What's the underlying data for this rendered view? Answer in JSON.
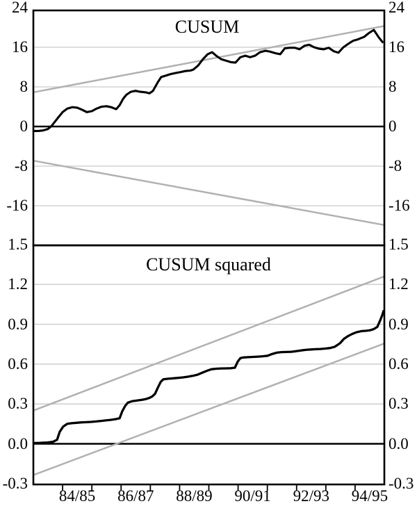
{
  "figure": {
    "kind": "dual-panel stability test chart",
    "top_title": "CUSUM",
    "bottom_title": "CUSUM squared"
  },
  "chart_data": [
    {
      "type": "line",
      "title": "CUSUM",
      "ylim": [
        -24,
        24
      ],
      "yticks": [
        {
          "v": 24,
          "label": "24"
        },
        {
          "v": 16,
          "label": "16"
        },
        {
          "v": 8,
          "label": "8"
        },
        {
          "v": 0,
          "label": "0"
        },
        {
          "v": -8,
          "label": "-8"
        },
        {
          "v": -16,
          "label": "-16"
        }
      ],
      "gridlines": [
        16,
        8,
        -8,
        -16
      ],
      "zero_line": 0,
      "grid_color": "#c9c9c9",
      "bound_color": "#b1b1b1",
      "line_color": "#000000",
      "series": [
        {
          "name": "cusum",
          "color": "#000000",
          "width": 3.1,
          "points": [
            [
              0.0,
              -0.9
            ],
            [
              0.17,
              -0.9
            ],
            [
              0.33,
              -0.8
            ],
            [
              0.5,
              -0.5
            ],
            [
              0.62,
              0.1
            ],
            [
              0.74,
              1.0
            ],
            [
              0.86,
              1.9
            ],
            [
              1.0,
              2.9
            ],
            [
              1.16,
              3.6
            ],
            [
              1.33,
              3.9
            ],
            [
              1.5,
              3.8
            ],
            [
              1.66,
              3.4
            ],
            [
              1.83,
              2.9
            ],
            [
              2.0,
              3.1
            ],
            [
              2.16,
              3.6
            ],
            [
              2.33,
              4.0
            ],
            [
              2.5,
              4.1
            ],
            [
              2.66,
              3.9
            ],
            [
              2.83,
              3.5
            ],
            [
              2.95,
              4.3
            ],
            [
              3.07,
              5.6
            ],
            [
              3.18,
              6.4
            ],
            [
              3.33,
              7.0
            ],
            [
              3.49,
              7.2
            ],
            [
              3.66,
              7.0
            ],
            [
              3.83,
              6.9
            ],
            [
              3.97,
              6.7
            ],
            [
              4.09,
              7.2
            ],
            [
              4.25,
              8.9
            ],
            [
              4.37,
              10.0
            ],
            [
              4.54,
              10.3
            ],
            [
              4.7,
              10.6
            ],
            [
              4.87,
              10.8
            ],
            [
              5.04,
              11.0
            ],
            [
              5.2,
              11.2
            ],
            [
              5.37,
              11.3
            ],
            [
              5.47,
              11.5
            ],
            [
              5.63,
              12.3
            ],
            [
              5.8,
              13.6
            ],
            [
              5.96,
              14.6
            ],
            [
              6.11,
              15.0
            ],
            [
              6.25,
              14.3
            ],
            [
              6.42,
              13.6
            ],
            [
              6.58,
              13.3
            ],
            [
              6.75,
              13.0
            ],
            [
              6.91,
              12.9
            ],
            [
              7.08,
              14.0
            ],
            [
              7.25,
              14.3
            ],
            [
              7.41,
              14.0
            ],
            [
              7.58,
              14.3
            ],
            [
              7.75,
              15.0
            ],
            [
              7.94,
              15.3
            ],
            [
              8.1,
              15.1
            ],
            [
              8.27,
              14.8
            ],
            [
              8.44,
              14.6
            ],
            [
              8.6,
              15.8
            ],
            [
              8.77,
              15.9
            ],
            [
              8.94,
              15.9
            ],
            [
              9.1,
              15.6
            ],
            [
              9.27,
              16.3
            ],
            [
              9.43,
              16.5
            ],
            [
              9.6,
              16.0
            ],
            [
              9.77,
              15.7
            ],
            [
              9.93,
              15.6
            ],
            [
              10.1,
              15.9
            ],
            [
              10.27,
              15.2
            ],
            [
              10.43,
              14.9
            ],
            [
              10.6,
              16.0
            ],
            [
              10.77,
              16.7
            ],
            [
              10.93,
              17.3
            ],
            [
              11.1,
              17.6
            ],
            [
              11.31,
              18.1
            ],
            [
              11.48,
              18.9
            ],
            [
              11.64,
              19.5
            ],
            [
              11.81,
              18.0
            ],
            [
              11.96,
              16.9
            ]
          ]
        },
        {
          "name": "upper-5pct-bound",
          "color": "#b1b1b1",
          "width": 2.5,
          "points": [
            [
              0,
              6.9
            ],
            [
              12,
              20.3
            ]
          ]
        },
        {
          "name": "lower-5pct-bound",
          "color": "#b1b1b1",
          "width": 2.5,
          "points": [
            [
              0,
              -6.9
            ],
            [
              12,
              -19.9
            ]
          ]
        }
      ]
    },
    {
      "type": "line",
      "title": "CUSUM squared",
      "ylim": [
        -0.3,
        1.5
      ],
      "yticks": [
        {
          "v": 1.5,
          "label": "1.5"
        },
        {
          "v": 1.2,
          "label": "1.2"
        },
        {
          "v": 0.9,
          "label": "0.9"
        },
        {
          "v": 0.6,
          "label": "0.6"
        },
        {
          "v": 0.3,
          "label": "0.3"
        },
        {
          "v": 0.0,
          "label": "0.0"
        },
        {
          "v": -0.3,
          "label": "-0.3"
        }
      ],
      "gridlines": [
        1.2,
        0.9,
        0.6,
        0.3
      ],
      "zero_line": 0,
      "grid_color": "#c9c9c9",
      "bound_color": "#b1b1b1",
      "line_color": "#000000",
      "series": [
        {
          "name": "cusum-squared",
          "color": "#000000",
          "width": 3.3,
          "points": [
            [
              0.0,
              0.005
            ],
            [
              0.24,
              0.007
            ],
            [
              0.48,
              0.01
            ],
            [
              0.67,
              0.015
            ],
            [
              0.81,
              0.03
            ],
            [
              0.9,
              0.09
            ],
            [
              1.02,
              0.13
            ],
            [
              1.16,
              0.15
            ],
            [
              1.31,
              0.155
            ],
            [
              1.47,
              0.158
            ],
            [
              1.64,
              0.161
            ],
            [
              1.81,
              0.163
            ],
            [
              1.97,
              0.165
            ],
            [
              2.14,
              0.168
            ],
            [
              2.31,
              0.172
            ],
            [
              2.47,
              0.176
            ],
            [
              2.64,
              0.18
            ],
            [
              2.8,
              0.185
            ],
            [
              2.95,
              0.192
            ],
            [
              3.04,
              0.245
            ],
            [
              3.14,
              0.285
            ],
            [
              3.23,
              0.31
            ],
            [
              3.37,
              0.32
            ],
            [
              3.54,
              0.326
            ],
            [
              3.71,
              0.331
            ],
            [
              3.85,
              0.337
            ],
            [
              3.97,
              0.346
            ],
            [
              4.06,
              0.356
            ],
            [
              4.16,
              0.376
            ],
            [
              4.25,
              0.42
            ],
            [
              4.35,
              0.465
            ],
            [
              4.44,
              0.485
            ],
            [
              4.61,
              0.49
            ],
            [
              4.78,
              0.493
            ],
            [
              4.94,
              0.496
            ],
            [
              5.11,
              0.5
            ],
            [
              5.28,
              0.505
            ],
            [
              5.44,
              0.511
            ],
            [
              5.61,
              0.52
            ],
            [
              5.77,
              0.535
            ],
            [
              5.94,
              0.55
            ],
            [
              6.08,
              0.561
            ],
            [
              6.25,
              0.565
            ],
            [
              6.42,
              0.567
            ],
            [
              6.58,
              0.568
            ],
            [
              6.75,
              0.569
            ],
            [
              6.89,
              0.573
            ],
            [
              6.99,
              0.62
            ],
            [
              7.08,
              0.645
            ],
            [
              7.18,
              0.65
            ],
            [
              7.34,
              0.652
            ],
            [
              7.51,
              0.654
            ],
            [
              7.68,
              0.656
            ],
            [
              7.84,
              0.659
            ],
            [
              8.01,
              0.663
            ],
            [
              8.15,
              0.675
            ],
            [
              8.32,
              0.686
            ],
            [
              8.48,
              0.69
            ],
            [
              8.65,
              0.691
            ],
            [
              8.82,
              0.693
            ],
            [
              8.98,
              0.697
            ],
            [
              9.15,
              0.703
            ],
            [
              9.31,
              0.707
            ],
            [
              9.48,
              0.71
            ],
            [
              9.65,
              0.712
            ],
            [
              9.81,
              0.714
            ],
            [
              9.98,
              0.717
            ],
            [
              10.15,
              0.721
            ],
            [
              10.31,
              0.731
            ],
            [
              10.48,
              0.756
            ],
            [
              10.62,
              0.79
            ],
            [
              10.77,
              0.812
            ],
            [
              10.91,
              0.828
            ],
            [
              11.05,
              0.84
            ],
            [
              11.22,
              0.848
            ],
            [
              11.38,
              0.851
            ],
            [
              11.52,
              0.855
            ],
            [
              11.64,
              0.864
            ],
            [
              11.76,
              0.88
            ],
            [
              11.86,
              0.93
            ],
            [
              11.93,
              0.97
            ],
            [
              11.98,
              1.005
            ]
          ]
        },
        {
          "name": "upper-5pct-bound",
          "color": "#b1b1b1",
          "width": 2.5,
          "points": [
            [
              0,
              0.25
            ],
            [
              12,
              1.26
            ]
          ]
        },
        {
          "name": "lower-5pct-bound",
          "color": "#b1b1b1",
          "width": 2.5,
          "points": [
            [
              0,
              -0.235
            ],
            [
              12,
              0.755
            ]
          ]
        }
      ]
    }
  ],
  "x_axis": {
    "range_note": "fiscal years 83/84 through 94/95, 12 intervals",
    "tick_positions": [
      1,
      2,
      3,
      4,
      5,
      6,
      7,
      8,
      9,
      10,
      11
    ],
    "labels": [
      {
        "pos": 1.5,
        "text": "84/85"
      },
      {
        "pos": 3.5,
        "text": "86/87"
      },
      {
        "pos": 5.5,
        "text": "88/89"
      },
      {
        "pos": 7.5,
        "text": "90/91"
      },
      {
        "pos": 9.5,
        "text": "92/93"
      },
      {
        "pos": 11.5,
        "text": "94/95"
      }
    ]
  }
}
